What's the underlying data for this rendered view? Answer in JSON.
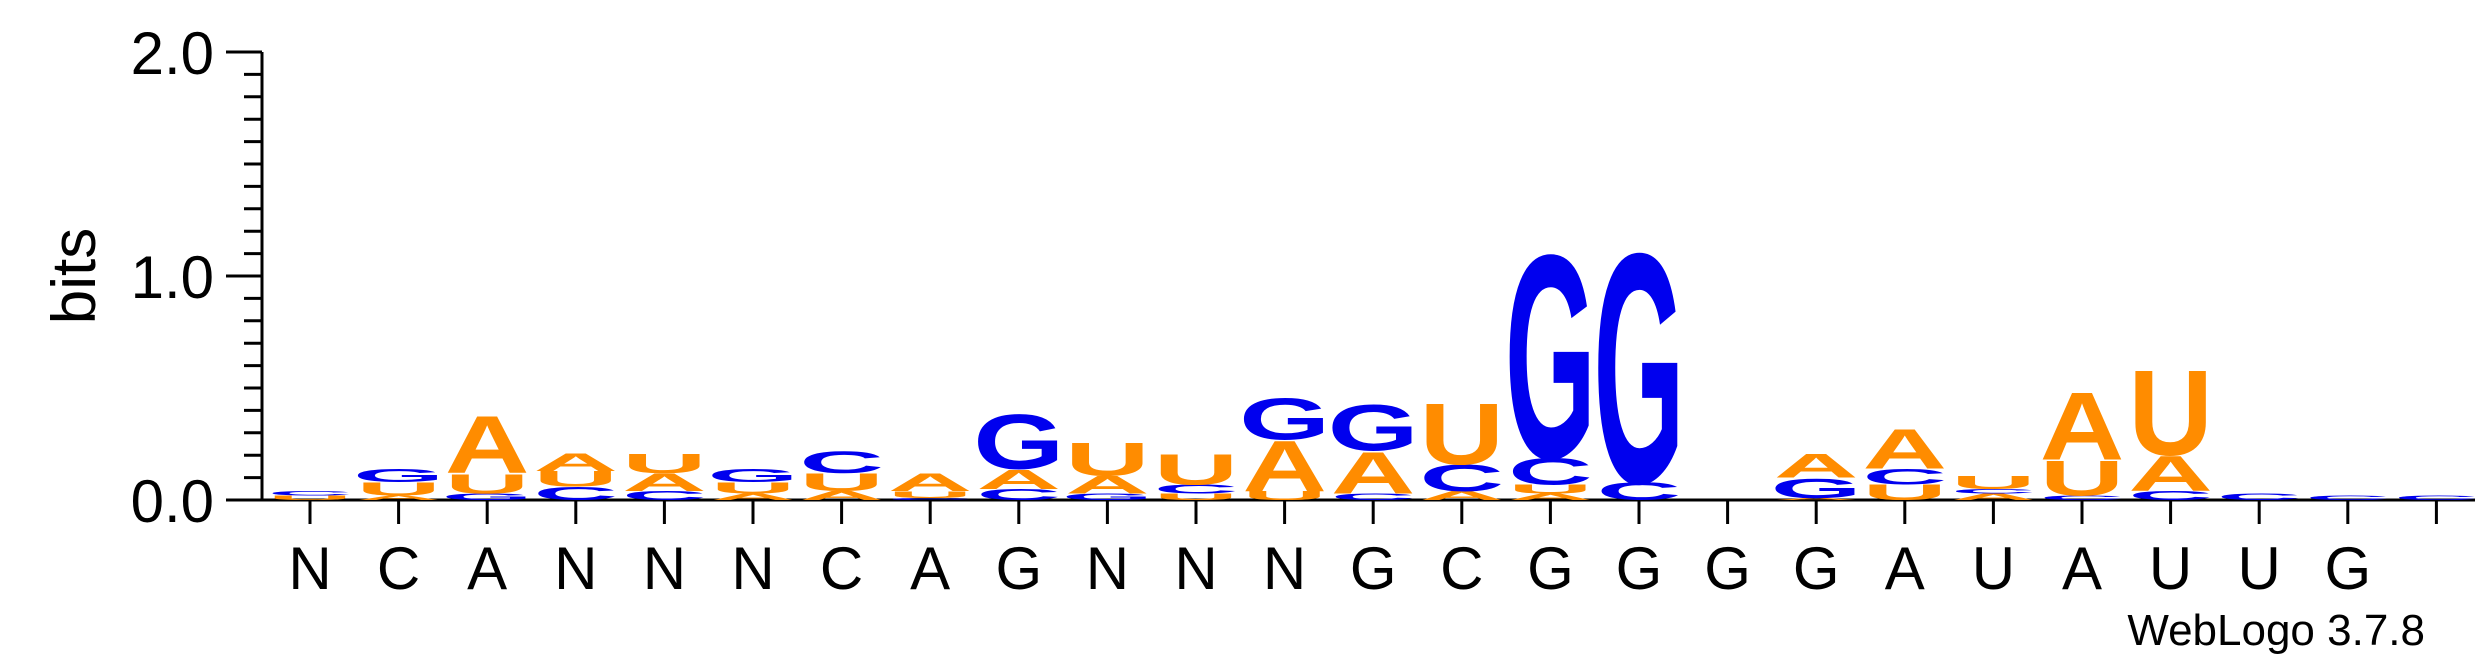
{
  "chart_data": {
    "type": "sequence-logo",
    "ylabel": "bits",
    "ylim": [
      0,
      2
    ],
    "y_ticks": [
      "0.0",
      "1.0",
      "2.0"
    ],
    "y_tick_values": [
      0,
      1,
      2
    ],
    "colors": {
      "A": "#ff8c00",
      "U": "#ff8c00",
      "C": "#0000ee",
      "G": "#0000ee"
    },
    "positions": [
      {
        "consensus": "N",
        "letters": [
          [
            "U",
            0.02
          ],
          [
            "C",
            0.02
          ]
        ]
      },
      {
        "consensus": "C",
        "letters": [
          [
            "A",
            0.02
          ],
          [
            "U",
            0.06
          ],
          [
            "G",
            0.06
          ]
        ]
      },
      {
        "consensus": "A",
        "letters": [
          [
            "G",
            0.03
          ],
          [
            "U",
            0.09
          ],
          [
            "A",
            0.26
          ]
        ]
      },
      {
        "consensus": "N",
        "letters": [
          [
            "C",
            0.06
          ],
          [
            "U",
            0.07
          ],
          [
            "A",
            0.08
          ]
        ]
      },
      {
        "consensus": "N",
        "letters": [
          [
            "C",
            0.04
          ],
          [
            "A",
            0.08
          ],
          [
            "U",
            0.09
          ]
        ]
      },
      {
        "consensus": "N",
        "letters": [
          [
            "A",
            0.03
          ],
          [
            "U",
            0.05
          ],
          [
            "G",
            0.06
          ]
        ]
      },
      {
        "consensus": "C",
        "letters": [
          [
            "A",
            0.04
          ],
          [
            "U",
            0.08
          ],
          [
            "C",
            0.1
          ]
        ]
      },
      {
        "consensus": "A",
        "letters": [
          [
            "C",
            0.01
          ],
          [
            "U",
            0.03
          ],
          [
            "A",
            0.08
          ]
        ]
      },
      {
        "consensus": "G",
        "letters": [
          [
            "C",
            0.05
          ],
          [
            "A",
            0.09
          ],
          [
            "G",
            0.25
          ]
        ]
      },
      {
        "consensus": "N",
        "letters": [
          [
            "G",
            0.03
          ],
          [
            "A",
            0.08
          ],
          [
            "U",
            0.15
          ]
        ]
      },
      {
        "consensus": "N",
        "letters": [
          [
            "U",
            0.03
          ],
          [
            "C",
            0.04
          ],
          [
            "U",
            0.14
          ]
        ]
      },
      {
        "consensus": "N",
        "letters": [
          [
            "U",
            0.04
          ],
          [
            "A",
            0.23
          ],
          [
            "G",
            0.19
          ]
        ]
      },
      {
        "consensus": "G",
        "letters": [
          [
            "C",
            0.03
          ],
          [
            "A",
            0.19
          ],
          [
            "G",
            0.21
          ]
        ]
      },
      {
        "consensus": "C",
        "letters": [
          [
            "A",
            0.04
          ],
          [
            "C",
            0.12
          ],
          [
            "U",
            0.28
          ]
        ]
      },
      {
        "consensus": "G",
        "letters": [
          [
            "A",
            0.03
          ],
          [
            "U",
            0.04
          ],
          [
            "C",
            0.12
          ],
          [
            "G",
            0.93
          ]
        ]
      },
      {
        "consensus": "G",
        "letters": [
          [
            "C",
            0.08
          ],
          [
            "G",
            1.05
          ]
        ]
      },
      {
        "consensus": "G",
        "letters": []
      },
      {
        "consensus": "G",
        "letters": [
          [
            "A",
            0.01
          ],
          [
            "G",
            0.09
          ],
          [
            "A",
            0.11
          ]
        ]
      },
      {
        "consensus": "A",
        "letters": [
          [
            "U",
            0.07
          ],
          [
            "C",
            0.07
          ],
          [
            "A",
            0.18
          ]
        ]
      },
      {
        "consensus": "U",
        "letters": [
          [
            "A",
            0.03
          ],
          [
            "C",
            0.02
          ],
          [
            "U",
            0.06
          ]
        ]
      },
      {
        "consensus": "A",
        "letters": [
          [
            "C",
            0.02
          ],
          [
            "U",
            0.16
          ],
          [
            "A",
            0.31
          ]
        ]
      },
      {
        "consensus": "U",
        "letters": [
          [
            "C",
            0.04
          ],
          [
            "A",
            0.16
          ],
          [
            "U",
            0.39
          ]
        ]
      },
      {
        "consensus": "U",
        "letters": [
          [
            "C",
            0.03
          ]
        ]
      },
      {
        "consensus": "G",
        "letters": [
          [
            "C",
            0.02
          ]
        ]
      },
      {
        "consensus": "",
        "letters": [
          [
            "C",
            0.02
          ]
        ]
      }
    ]
  },
  "footer": {
    "credit": "WebLogo 3.7.8"
  }
}
